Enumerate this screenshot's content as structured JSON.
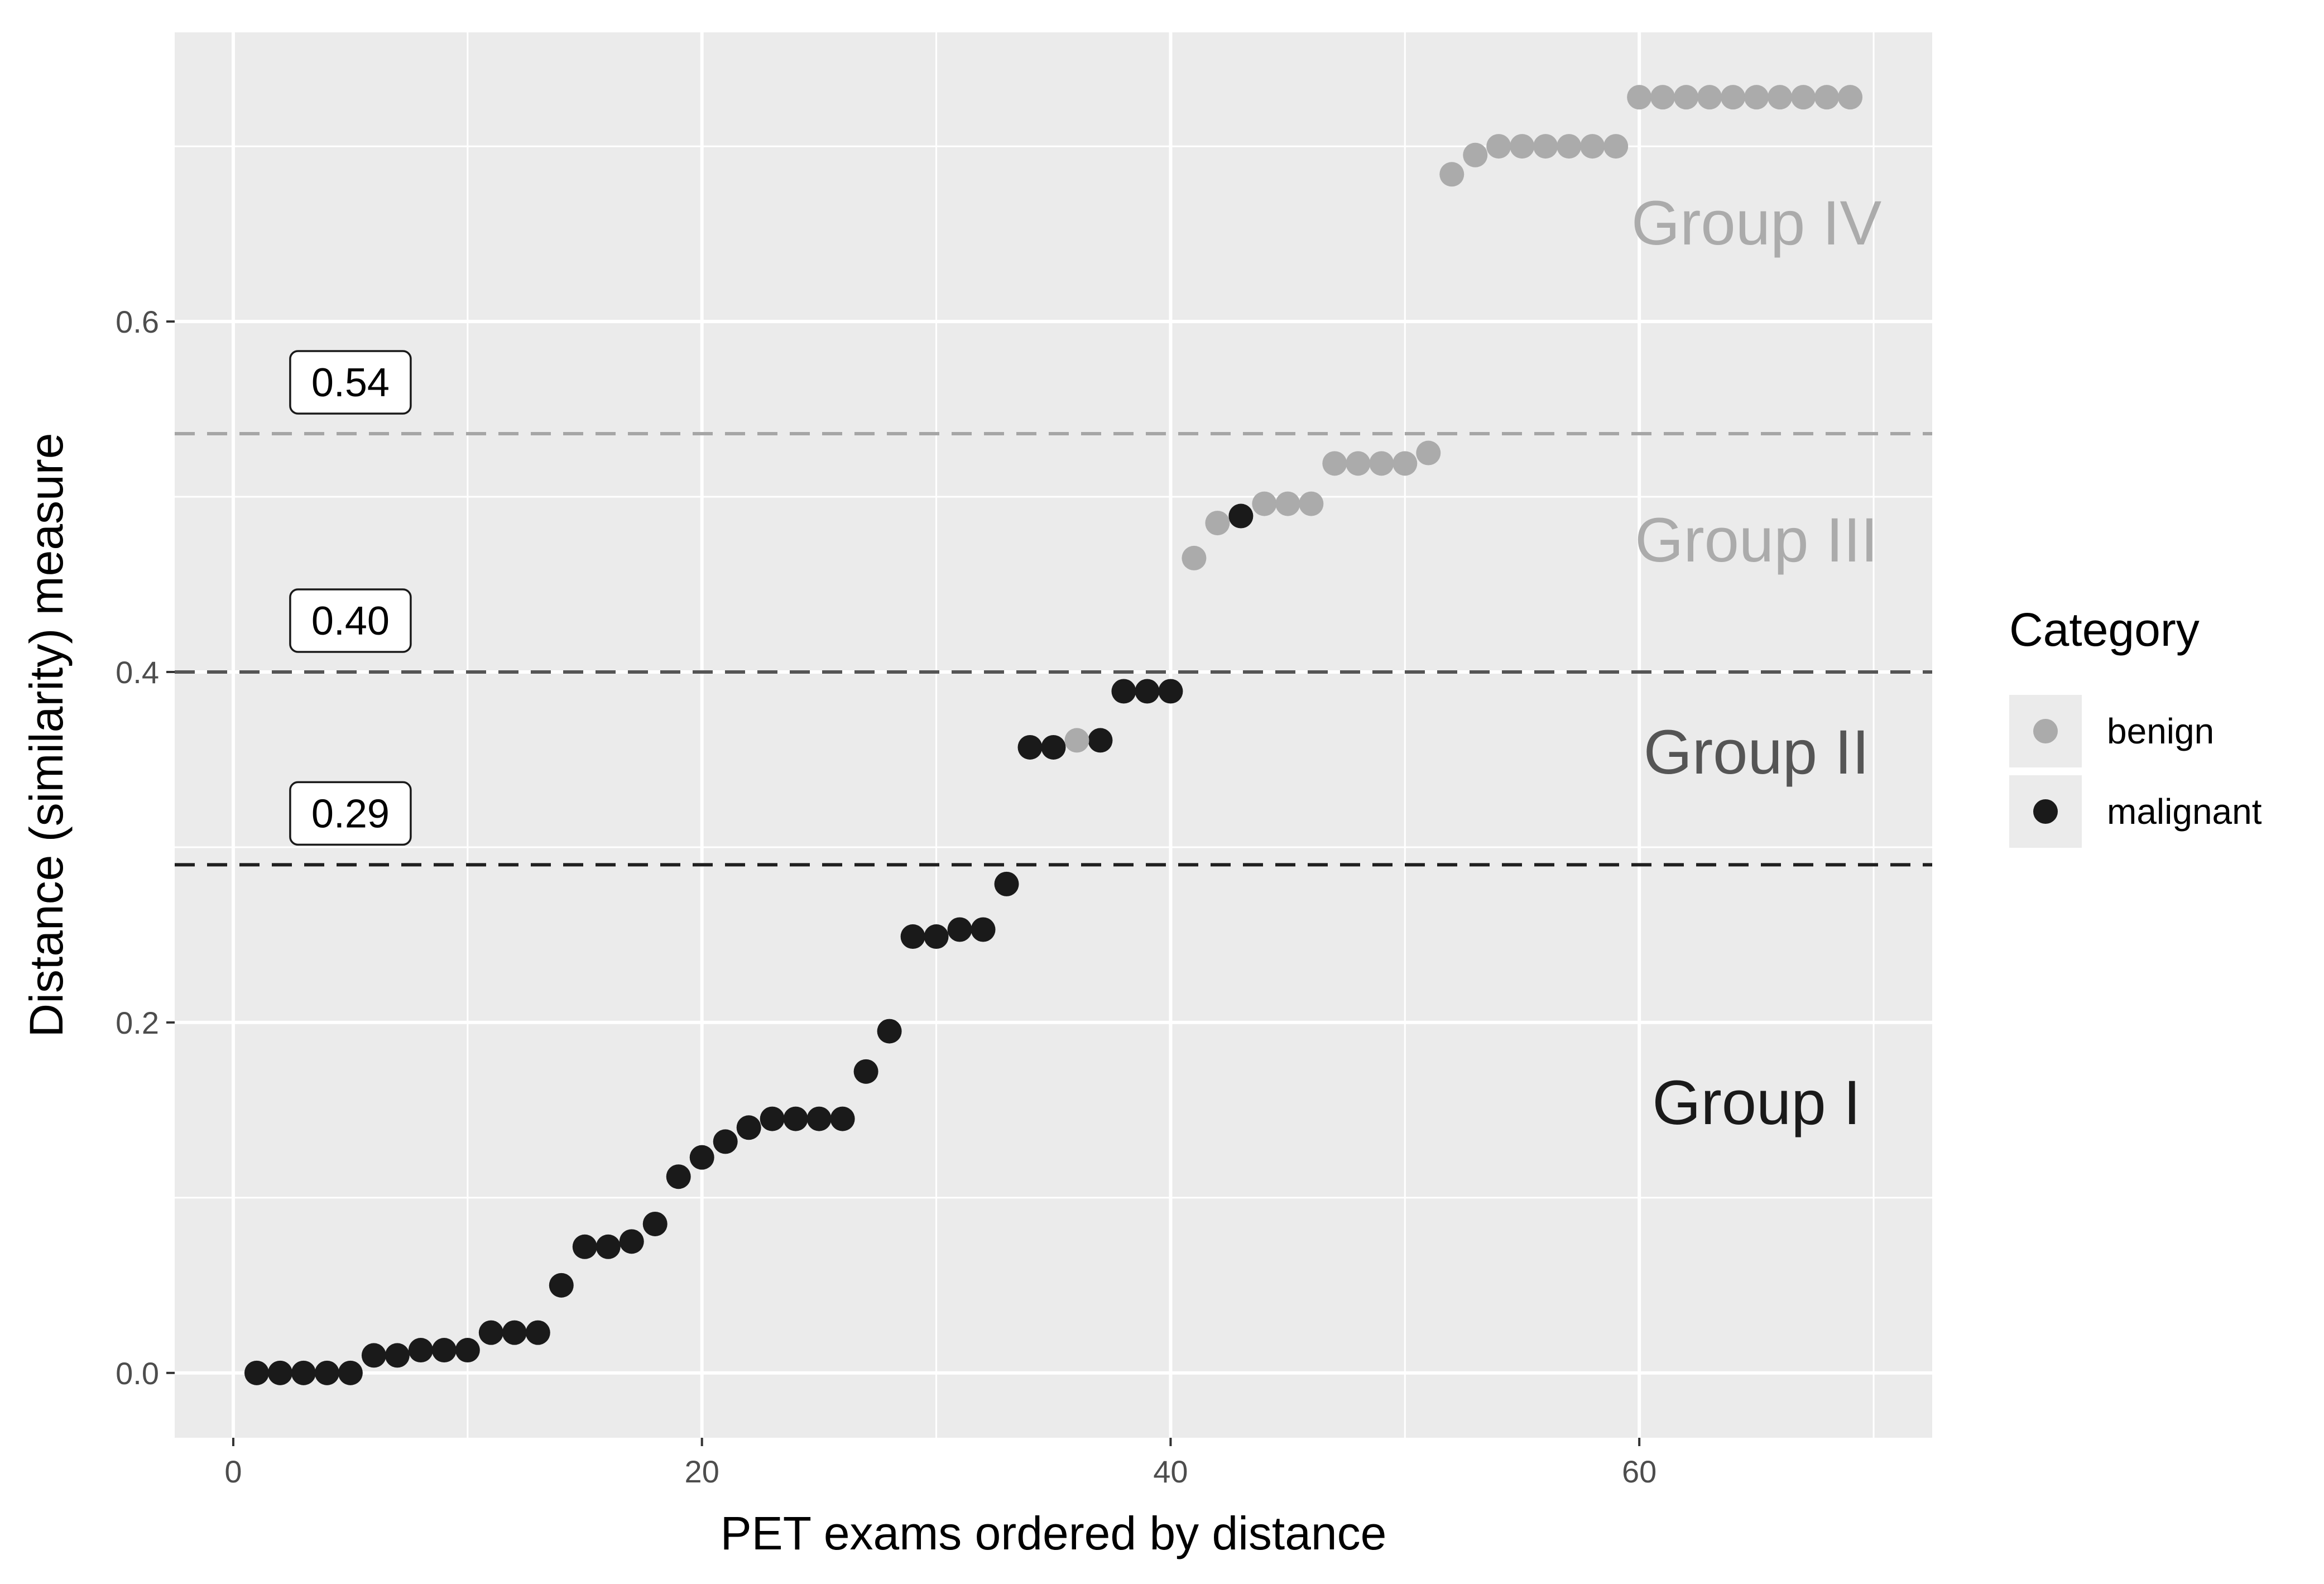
{
  "chart_data": {
    "type": "scatter",
    "xlabel": "PET exams ordered by distance",
    "ylabel": "Distance (similarity) measure",
    "xlim": [
      -2.5,
      72.5
    ],
    "ylim": [
      -0.037,
      0.765
    ],
    "x_ticks": [
      0,
      20,
      40,
      60
    ],
    "x_tick_labels": [
      "0",
      "20",
      "40",
      "60"
    ],
    "y_ticks": [
      0.0,
      0.2,
      0.4,
      0.6
    ],
    "y_tick_labels": [
      "0.0",
      "0.2",
      "0.4",
      "0.6"
    ],
    "grid": true,
    "legend_position": "right",
    "legend": {
      "title": "Category",
      "entries": [
        {
          "name": "benign",
          "color": "#ababab"
        },
        {
          "name": "malignant",
          "color": "#1a1a1a"
        }
      ]
    },
    "colors": {
      "benign": "#ababab",
      "malignant": "#1a1a1a",
      "panel": "#ebebeb",
      "grid": "#ffffff"
    },
    "thresholds": [
      {
        "value": 0.536,
        "label": "0.54",
        "color": "#a6a6a6"
      },
      {
        "value": 0.4,
        "label": "0.40",
        "color": "#555555"
      },
      {
        "value": 0.29,
        "label": "0.29",
        "color": "#1f1f1f"
      }
    ],
    "groups": [
      {
        "label": "Group IV",
        "x": 65,
        "y": 0.644,
        "color": "#ababab"
      },
      {
        "label": "Group III",
        "x": 65,
        "y": 0.463,
        "color": "#ababab"
      },
      {
        "label": "Group II",
        "x": 65,
        "y": 0.342,
        "color": "#555555"
      },
      {
        "label": "Group I",
        "x": 65,
        "y": 0.142,
        "color": "#1a1a1a"
      }
    ],
    "series": [
      {
        "name": "malignant",
        "color": "#1a1a1a",
        "points": [
          [
            1,
            0.0
          ],
          [
            2,
            0.0
          ],
          [
            3,
            0.0
          ],
          [
            4,
            0.0
          ],
          [
            5,
            0.0
          ],
          [
            6,
            0.01
          ],
          [
            7,
            0.01
          ],
          [
            8,
            0.013
          ],
          [
            9,
            0.013
          ],
          [
            10,
            0.013
          ],
          [
            11,
            0.023
          ],
          [
            12,
            0.023
          ],
          [
            13,
            0.023
          ],
          [
            14,
            0.05
          ],
          [
            15,
            0.072
          ],
          [
            16,
            0.072
          ],
          [
            17,
            0.075
          ],
          [
            18,
            0.085
          ],
          [
            19,
            0.112
          ],
          [
            20,
            0.123
          ],
          [
            21,
            0.132
          ],
          [
            22,
            0.14
          ],
          [
            23,
            0.145
          ],
          [
            24,
            0.145
          ],
          [
            25,
            0.145
          ],
          [
            26,
            0.145
          ],
          [
            27,
            0.172
          ],
          [
            28,
            0.195
          ],
          [
            29,
            0.249
          ],
          [
            30,
            0.249
          ],
          [
            31,
            0.253
          ],
          [
            32,
            0.253
          ],
          [
            33,
            0.279
          ],
          [
            34,
            0.357
          ],
          [
            35,
            0.357
          ],
          [
            37,
            0.361
          ],
          [
            38,
            0.389
          ],
          [
            39,
            0.389
          ],
          [
            40,
            0.389
          ],
          [
            43,
            0.489
          ]
        ]
      },
      {
        "name": "benign",
        "color": "#ababab",
        "points": [
          [
            36,
            0.361
          ],
          [
            41,
            0.465
          ],
          [
            42,
            0.485
          ],
          [
            44,
            0.496
          ],
          [
            45,
            0.496
          ],
          [
            46,
            0.496
          ],
          [
            47,
            0.519
          ],
          [
            48,
            0.519
          ],
          [
            49,
            0.519
          ],
          [
            50,
            0.519
          ],
          [
            51,
            0.525
          ],
          [
            52,
            0.684
          ],
          [
            53,
            0.695
          ],
          [
            54,
            0.7
          ],
          [
            55,
            0.7
          ],
          [
            56,
            0.7
          ],
          [
            57,
            0.7
          ],
          [
            58,
            0.7
          ],
          [
            59,
            0.7
          ],
          [
            60,
            0.728
          ],
          [
            61,
            0.728
          ],
          [
            62,
            0.728
          ],
          [
            63,
            0.728
          ],
          [
            64,
            0.728
          ],
          [
            65,
            0.728
          ],
          [
            66,
            0.728
          ],
          [
            67,
            0.728
          ],
          [
            68,
            0.728
          ],
          [
            69,
            0.728
          ]
        ]
      }
    ]
  }
}
